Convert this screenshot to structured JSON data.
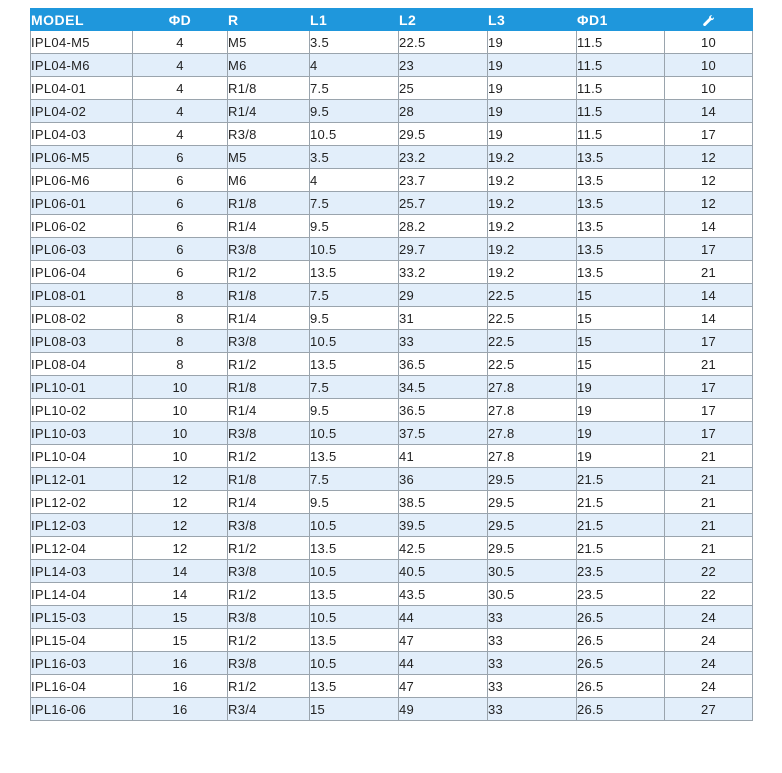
{
  "table": {
    "headers": {
      "model": "MODEL",
      "od": "ΦD",
      "r": "R",
      "l1": "L1",
      "l2": "L2",
      "l3": "L3",
      "od1": "ΦD1",
      "hex_icon": "wrench-icon"
    },
    "header_color": "#1f97dc",
    "stripe_color": "#e2eefa",
    "rows": [
      [
        "IPL04-M5",
        "4",
        "M5",
        "3.5",
        "22.5",
        "19",
        "11.5",
        "10"
      ],
      [
        "IPL04-M6",
        "4",
        "M6",
        "4",
        "23",
        "19",
        "11.5",
        "10"
      ],
      [
        "IPL04-01",
        "4",
        "R1/8",
        "7.5",
        "25",
        "19",
        "11.5",
        "10"
      ],
      [
        "IPL04-02",
        "4",
        "R1/4",
        "9.5",
        "28",
        "19",
        "11.5",
        "14"
      ],
      [
        "IPL04-03",
        "4",
        "R3/8",
        "10.5",
        "29.5",
        "19",
        "11.5",
        "17"
      ],
      [
        "IPL06-M5",
        "6",
        "M5",
        "3.5",
        "23.2",
        "19.2",
        "13.5",
        "12"
      ],
      [
        "IPL06-M6",
        "6",
        "M6",
        "4",
        "23.7",
        "19.2",
        "13.5",
        "12"
      ],
      [
        "IPL06-01",
        "6",
        "R1/8",
        "7.5",
        "25.7",
        "19.2",
        "13.5",
        "12"
      ],
      [
        "IPL06-02",
        "6",
        "R1/4",
        "9.5",
        "28.2",
        "19.2",
        "13.5",
        "14"
      ],
      [
        "IPL06-03",
        "6",
        "R3/8",
        "10.5",
        "29.7",
        "19.2",
        "13.5",
        "17"
      ],
      [
        "IPL06-04",
        "6",
        "R1/2",
        "13.5",
        "33.2",
        "19.2",
        "13.5",
        "21"
      ],
      [
        "IPL08-01",
        "8",
        "R1/8",
        "7.5",
        "29",
        "22.5",
        "15",
        "14"
      ],
      [
        "IPL08-02",
        "8",
        "R1/4",
        "9.5",
        "31",
        "22.5",
        "15",
        "14"
      ],
      [
        "IPL08-03",
        "8",
        "R3/8",
        "10.5",
        "33",
        "22.5",
        "15",
        "17"
      ],
      [
        "IPL08-04",
        "8",
        "R1/2",
        "13.5",
        "36.5",
        "22.5",
        "15",
        "21"
      ],
      [
        "IPL10-01",
        "10",
        "R1/8",
        "7.5",
        "34.5",
        "27.8",
        "19",
        "17"
      ],
      [
        "IPL10-02",
        "10",
        "R1/4",
        "9.5",
        "36.5",
        "27.8",
        "19",
        "17"
      ],
      [
        "IPL10-03",
        "10",
        "R3/8",
        "10.5",
        "37.5",
        "27.8",
        "19",
        "17"
      ],
      [
        "IPL10-04",
        "10",
        "R1/2",
        "13.5",
        "41",
        "27.8",
        "19",
        "21"
      ],
      [
        "IPL12-01",
        "12",
        "R1/8",
        "7.5",
        "36",
        "29.5",
        "21.5",
        "21"
      ],
      [
        "IPL12-02",
        "12",
        "R1/4",
        "9.5",
        "38.5",
        "29.5",
        "21.5",
        "21"
      ],
      [
        "IPL12-03",
        "12",
        "R3/8",
        "10.5",
        "39.5",
        "29.5",
        "21.5",
        "21"
      ],
      [
        "IPL12-04",
        "12",
        "R1/2",
        "13.5",
        "42.5",
        "29.5",
        "21.5",
        "21"
      ],
      [
        "IPL14-03",
        "14",
        "R3/8",
        "10.5",
        "40.5",
        "30.5",
        "23.5",
        "22"
      ],
      [
        "IPL14-04",
        "14",
        "R1/2",
        "13.5",
        "43.5",
        "30.5",
        "23.5",
        "22"
      ],
      [
        "IPL15-03",
        "15",
        "R3/8",
        "10.5",
        "44",
        "33",
        "26.5",
        "24"
      ],
      [
        "IPL15-04",
        "15",
        "R1/2",
        "13.5",
        "47",
        "33",
        "26.5",
        "24"
      ],
      [
        "IPL16-03",
        "16",
        "R3/8",
        "10.5",
        "44",
        "33",
        "26.5",
        "24"
      ],
      [
        "IPL16-04",
        "16",
        "R1/2",
        "13.5",
        "47",
        "33",
        "26.5",
        "24"
      ],
      [
        "IPL16-06",
        "16",
        "R3/4",
        "15",
        "49",
        "33",
        "26.5",
        "27"
      ]
    ]
  }
}
